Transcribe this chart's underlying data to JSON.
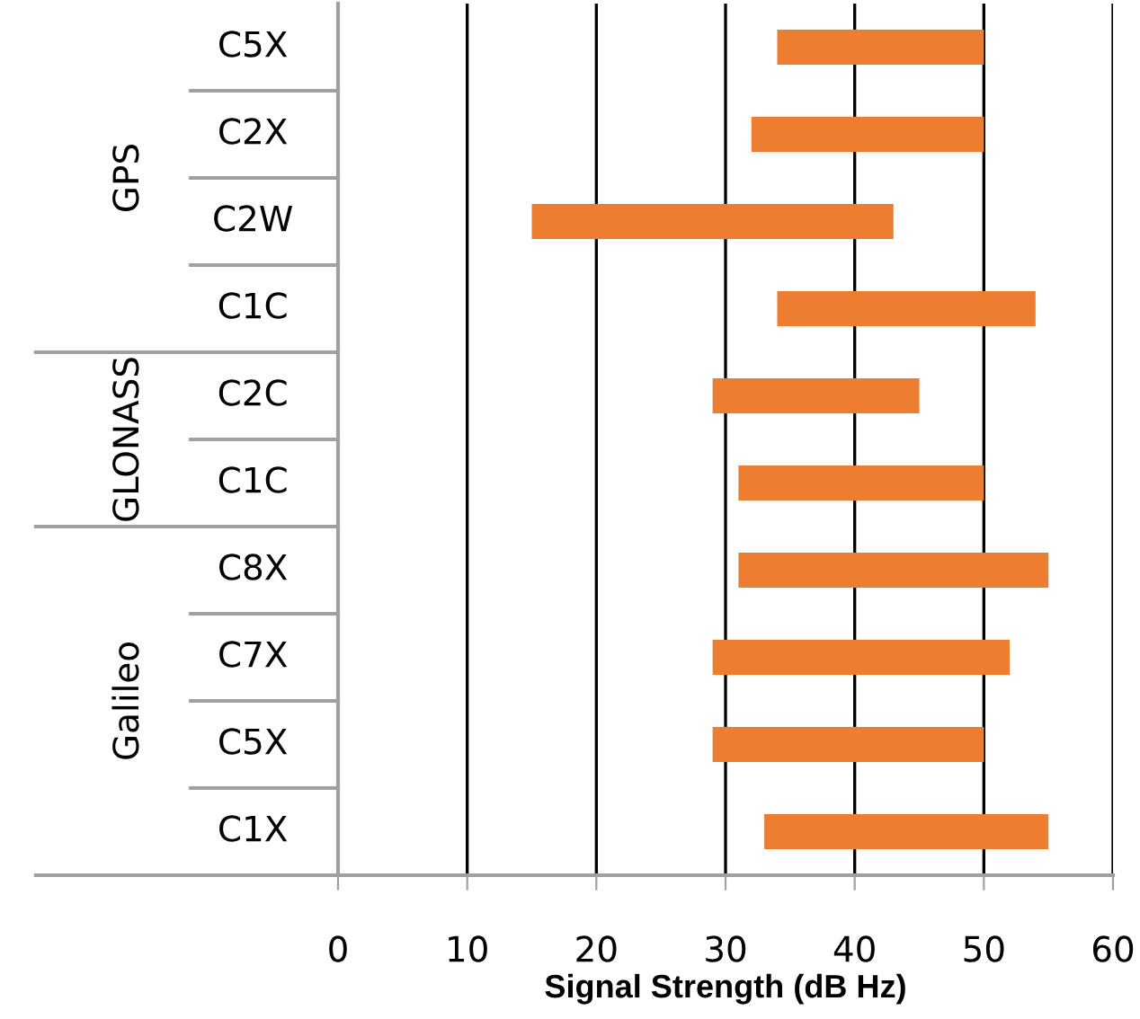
{
  "chart_data": [
    {
      "type": "bar",
      "orientation": "horizontal",
      "ylabel": "GPS",
      "categories": [
        "C5X",
        "C2X",
        "C2W",
        "C1C"
      ],
      "base": [
        34,
        32,
        15,
        34
      ],
      "values": [
        16,
        18,
        28,
        20
      ],
      "color": "#ed7d31",
      "xlim": [
        0,
        60
      ],
      "xticks": [
        0,
        10,
        20,
        30,
        40,
        50,
        60
      ],
      "tick_labels": "y",
      "grid": "x"
    },
    {
      "type": "bar",
      "orientation": "horizontal",
      "ylabel": "GLONASS",
      "categories": [
        "C2C",
        "C1C"
      ],
      "base": [
        29,
        31
      ],
      "values": [
        16,
        19
      ],
      "color": "#ed7d31",
      "xlim": [
        0,
        60
      ],
      "xticks": [
        0,
        10,
        20,
        30,
        40,
        50,
        60
      ],
      "tick_labels": "y",
      "grid": "x"
    },
    {
      "type": "bar",
      "orientation": "horizontal",
      "ylabel": "Galileo",
      "categories": [
        "C8X",
        "C7X",
        "C5X",
        "C1X"
      ],
      "base": [
        31,
        29,
        29,
        33
      ],
      "values": [
        24,
        23,
        21,
        22
      ],
      "color": "#ed7d31",
      "xlim": [
        0,
        60
      ],
      "xticks": [
        0,
        10,
        20,
        30,
        40,
        50,
        60
      ],
      "xlabel": "Signal Strength (dB Hz)",
      "grid": "x"
    }
  ]
}
